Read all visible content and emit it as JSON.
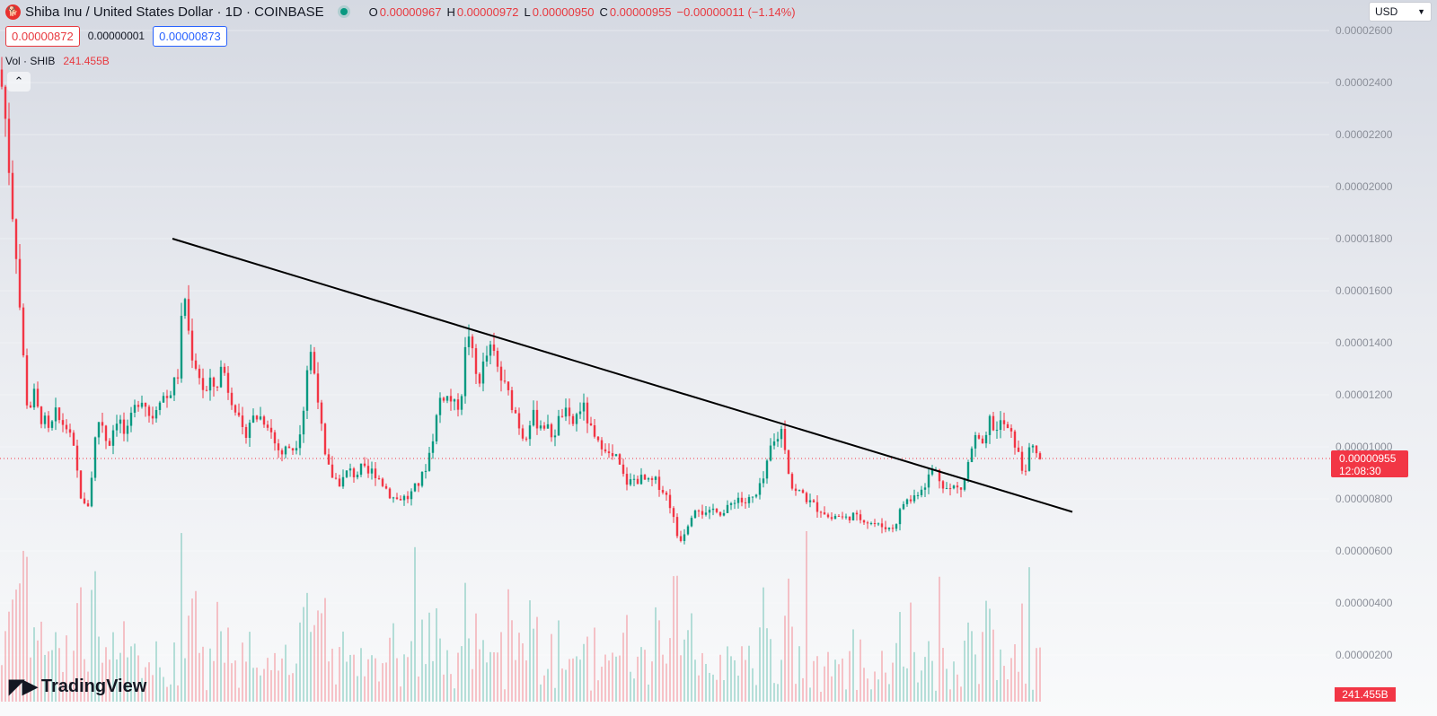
{
  "header": {
    "logo_icon": "shiba-inu-coin-icon",
    "symbol_title": "Shiba Inu / United States Dollar · 1D · COINBASE",
    "market_status_color": "#089981",
    "ohlc": {
      "open_label": "O",
      "open": "0.00000967",
      "high_label": "H",
      "high": "0.00000972",
      "low_label": "L",
      "low": "0.00000950",
      "close_label": "C",
      "close": "0.00000955",
      "change": "−0.00000011 (−1.14%)"
    },
    "sell_price": "0.00000872",
    "spread": "0.00000001",
    "buy_price": "0.00000873",
    "volume_label": "Vol · SHIB",
    "volume_value": "241.455B",
    "collapse_icon": "chevron-up-icon"
  },
  "currency_select": {
    "value": "USD"
  },
  "price_scale": {
    "labels": [
      "0.00002600",
      "0.00002400",
      "0.00002200",
      "0.00002000",
      "0.00001800",
      "0.00001600",
      "0.00001400",
      "0.00001200",
      "0.00001000",
      "0.00000800",
      "0.00000600",
      "0.00000400",
      "0.00000200"
    ]
  },
  "last_price_tag": {
    "price": "0.00000955",
    "countdown": "12:08:30"
  },
  "volume_tag": "241.455B",
  "branding": {
    "logo_text": "TradingView",
    "logo_icon": "tradingview-logo-icon"
  },
  "colors": {
    "up": "#089981",
    "down": "#f23645",
    "trendline": "#000000"
  },
  "chart_data": {
    "type": "candlestick",
    "y_range": [
      4e-06,
      2.65e-05
    ],
    "price_points": [
      [
        0,
        2.45e-05
      ],
      [
        4,
        2.32e-05
      ],
      [
        8,
        2.2e-05
      ],
      [
        12,
        1.95e-05
      ],
      [
        16,
        1.85e-05
      ],
      [
        20,
        1.65e-05
      ],
      [
        24,
        1.43e-05
      ],
      [
        28,
        1.25e-05
      ],
      [
        32,
        1.1e-05
      ],
      [
        36,
        1.22e-05
      ],
      [
        40,
        1.18e-05
      ],
      [
        44,
        1.1e-05
      ],
      [
        48,
        1.12e-05
      ],
      [
        52,
        1.07e-05
      ],
      [
        56,
        1.04e-05
      ],
      [
        60,
        1.13e-05
      ],
      [
        64,
        1.12e-05
      ],
      [
        68,
        1.08e-05
      ],
      [
        72,
        1.1e-05
      ],
      [
        76,
        1.05e-05
      ],
      [
        80,
        1.02e-05
      ],
      [
        84,
        9.5e-06
      ],
      [
        88,
        8.5e-06
      ],
      [
        92,
        7.8e-06
      ],
      [
        96,
        7.6e-06
      ],
      [
        100,
        8e-06
      ],
      [
        104,
        9.8e-06
      ],
      [
        108,
        1.08e-05
      ],
      [
        112,
        1.12e-05
      ],
      [
        116,
        1.06e-05
      ],
      [
        120,
        1e-05
      ],
      [
        124,
        1.04e-05
      ],
      [
        128,
        1.1e-05
      ],
      [
        132,
        1.12e-05
      ],
      [
        136,
        1.07e-05
      ],
      [
        140,
        1.03e-05
      ],
      [
        144,
        1.08e-05
      ],
      [
        148,
        1.13e-05
      ],
      [
        152,
        1.16e-05
      ],
      [
        156,
        1.2e-05
      ],
      [
        160,
        1.18e-05
      ],
      [
        164,
        1.15e-05
      ],
      [
        168,
        1.1e-05
      ],
      [
        172,
        1.14e-05
      ],
      [
        176,
        1.18e-05
      ],
      [
        180,
        1.21e-05
      ],
      [
        184,
        1.18e-05
      ],
      [
        188,
        1.2e-05
      ],
      [
        192,
        1.23e-05
      ],
      [
        196,
        1.26e-05
      ],
      [
        200,
        1.3e-05
      ],
      [
        204,
        1.65e-05
      ],
      [
        208,
        1.5e-05
      ],
      [
        212,
        1.38e-05
      ],
      [
        216,
        1.33e-05
      ],
      [
        220,
        1.3e-05
      ],
      [
        224,
        1.25e-05
      ],
      [
        228,
        1.2e-05
      ],
      [
        232,
        1.22e-05
      ],
      [
        236,
        1.26e-05
      ],
      [
        240,
        1.21e-05
      ],
      [
        244,
        1.28e-05
      ],
      [
        248,
        1.32e-05
      ],
      [
        252,
        1.25e-05
      ],
      [
        256,
        1.2e-05
      ],
      [
        260,
        1.18e-05
      ],
      [
        264,
        1.13e-05
      ],
      [
        268,
        1.06e-05
      ],
      [
        272,
        1.04e-05
      ],
      [
        276,
        1.08e-05
      ],
      [
        280,
        1.12e-05
      ],
      [
        284,
        1.1e-05
      ],
      [
        288,
        1.13e-05
      ],
      [
        292,
        1.1e-05
      ],
      [
        296,
        1.11e-05
      ],
      [
        300,
        1.08e-05
      ],
      [
        304,
        1.03e-05
      ],
      [
        308,
        1e-05
      ],
      [
        312,
        9.8e-06
      ],
      [
        316,
        9.7e-06
      ],
      [
        320,
        1.01e-05
      ],
      [
        324,
        9.9e-06
      ],
      [
        328,
        1e-05
      ],
      [
        332,
        1.04e-05
      ],
      [
        336,
        1.1e-05
      ],
      [
        340,
        1.2e-05
      ],
      [
        344,
        1.4e-05
      ],
      [
        348,
        1.32e-05
      ],
      [
        352,
        1.25e-05
      ],
      [
        356,
        1.15e-05
      ],
      [
        360,
        9.8e-06
      ],
      [
        364,
        9.3e-06
      ],
      [
        368,
        9e-06
      ],
      [
        372,
        8.8e-06
      ],
      [
        376,
        8.7e-06
      ],
      [
        380,
        8.6e-06
      ],
      [
        384,
        8.9e-06
      ],
      [
        388,
        9.1e-06
      ],
      [
        392,
        9e-06
      ],
      [
        396,
        8.9e-06
      ],
      [
        400,
        9.1e-06
      ],
      [
        404,
        9.2e-06
      ],
      [
        408,
        8.9e-06
      ],
      [
        412,
        9e-06
      ],
      [
        416,
        9.1e-06
      ],
      [
        420,
        8.9e-06
      ],
      [
        424,
        8.7e-06
      ],
      [
        428,
        8.5e-06
      ],
      [
        432,
        8.3e-06
      ],
      [
        436,
        8.1e-06
      ],
      [
        440,
        8e-06
      ],
      [
        444,
        8e-06
      ],
      [
        448,
        8.1e-06
      ],
      [
        452,
        8e-06
      ],
      [
        456,
        8.1e-06
      ],
      [
        460,
        8.3e-06
      ],
      [
        464,
        8.5e-06
      ],
      [
        468,
        8.7e-06
      ],
      [
        472,
        9e-06
      ],
      [
        476,
        9.5e-06
      ],
      [
        480,
        1e-05
      ],
      [
        484,
        1.08e-05
      ],
      [
        488,
        1.15e-05
      ],
      [
        492,
        1.22e-05
      ],
      [
        496,
        1.18e-05
      ],
      [
        500,
        1.2e-05
      ],
      [
        504,
        1.16e-05
      ],
      [
        508,
        1.15e-05
      ],
      [
        512,
        1.18e-05
      ],
      [
        516,
        1.25e-05
      ],
      [
        520,
        1.48e-05
      ],
      [
        524,
        1.4e-05
      ],
      [
        528,
        1.3e-05
      ],
      [
        532,
        1.25e-05
      ],
      [
        536,
        1.28e-05
      ],
      [
        540,
        1.34e-05
      ],
      [
        544,
        1.36e-05
      ],
      [
        548,
        1.38e-05
      ],
      [
        552,
        1.32e-05
      ],
      [
        556,
        1.28e-05
      ],
      [
        560,
        1.24e-05
      ],
      [
        564,
        1.22e-05
      ],
      [
        568,
        1.18e-05
      ],
      [
        572,
        1.15e-05
      ],
      [
        576,
        1.11e-05
      ],
      [
        580,
        1.06e-05
      ],
      [
        584,
        1.03e-05
      ],
      [
        588,
        1.08e-05
      ],
      [
        592,
        1.12e-05
      ],
      [
        596,
        1.11e-05
      ],
      [
        600,
        1.08e-05
      ],
      [
        604,
        1.1e-05
      ],
      [
        608,
        1.07e-05
      ],
      [
        612,
        1.06e-05
      ],
      [
        616,
        1.04e-05
      ],
      [
        620,
        1.08e-05
      ],
      [
        624,
        1.12e-05
      ],
      [
        628,
        1.14e-05
      ],
      [
        632,
        1.11e-05
      ],
      [
        636,
        1.08e-05
      ],
      [
        640,
        1.1e-05
      ],
      [
        644,
        1.14e-05
      ],
      [
        648,
        1.16e-05
      ],
      [
        652,
        1.13e-05
      ],
      [
        656,
        1.08e-05
      ],
      [
        660,
        1.04e-05
      ],
      [
        664,
        1.01e-05
      ],
      [
        668,
        1e-05
      ],
      [
        672,
        1.03e-05
      ],
      [
        676,
        9.8e-06
      ],
      [
        680,
        9.5e-06
      ],
      [
        684,
        9.7e-06
      ],
      [
        688,
        9.4e-06
      ],
      [
        692,
        9e-06
      ],
      [
        696,
        8.7e-06
      ],
      [
        700,
        8.6e-06
      ],
      [
        704,
        8.7e-06
      ],
      [
        708,
        8.8e-06
      ],
      [
        712,
        8.7e-06
      ],
      [
        716,
        8.8e-06
      ],
      [
        720,
        8.6e-06
      ],
      [
        724,
        8.6e-06
      ],
      [
        728,
        8.7e-06
      ],
      [
        732,
        8.6e-06
      ],
      [
        736,
        8.5e-06
      ],
      [
        740,
        8.2e-06
      ],
      [
        744,
        8e-06
      ],
      [
        748,
        7.6e-06
      ],
      [
        752,
        6.8e-06
      ],
      [
        756,
        6.4e-06
      ],
      [
        760,
        6.6e-06
      ],
      [
        764,
        6.9e-06
      ],
      [
        768,
        7.3e-06
      ],
      [
        772,
        7.6e-06
      ],
      [
        776,
        7.8e-06
      ],
      [
        780,
        7.6e-06
      ],
      [
        784,
        7.4e-06
      ],
      [
        788,
        7.3e-06
      ],
      [
        792,
        7.5e-06
      ],
      [
        796,
        7.7e-06
      ],
      [
        800,
        7.6e-06
      ],
      [
        804,
        7.4e-06
      ],
      [
        808,
        7.5e-06
      ],
      [
        812,
        7.7e-06
      ],
      [
        816,
        7.9e-06
      ],
      [
        820,
        8.1e-06
      ],
      [
        824,
        8e-06
      ],
      [
        828,
        7.8e-06
      ],
      [
        832,
        7.9e-06
      ],
      [
        836,
        8e-06
      ],
      [
        840,
        8e-06
      ],
      [
        844,
        8.2e-06
      ],
      [
        848,
        8.6e-06
      ],
      [
        852,
        8.9e-06
      ],
      [
        856,
        9.6e-06
      ],
      [
        860,
        1.03e-05
      ],
      [
        864,
        1e-05
      ],
      [
        868,
        1.08e-05
      ],
      [
        872,
        1.05e-05
      ],
      [
        876,
        9.6e-06
      ],
      [
        880,
        8.6e-06
      ],
      [
        884,
        8.3e-06
      ],
      [
        888,
        8.2e-06
      ],
      [
        892,
        8.3e-06
      ],
      [
        896,
        8.1e-06
      ],
      [
        900,
        7.9e-06
      ],
      [
        904,
        7.8e-06
      ],
      [
        908,
        7.7e-06
      ],
      [
        912,
        7.6e-06
      ],
      [
        916,
        7.6e-06
      ],
      [
        920,
        7.4e-06
      ],
      [
        924,
        7.2e-06
      ],
      [
        928,
        7.3e-06
      ],
      [
        932,
        7.4e-06
      ],
      [
        936,
        7.3e-06
      ],
      [
        940,
        7.2e-06
      ],
      [
        944,
        7.3e-06
      ],
      [
        948,
        7.4e-06
      ],
      [
        952,
        7.3e-06
      ],
      [
        956,
        7.2e-06
      ],
      [
        960,
        7.3e-06
      ],
      [
        964,
        7.2e-06
      ],
      [
        968,
        7.1e-06
      ],
      [
        972,
        7.1e-06
      ],
      [
        976,
        7e-06
      ],
      [
        980,
        6.9e-06
      ],
      [
        984,
        7e-06
      ],
      [
        988,
        6.9e-06
      ],
      [
        992,
        6.8e-06
      ],
      [
        996,
        7e-06
      ],
      [
        1000,
        7.3e-06
      ],
      [
        1004,
        7.7e-06
      ],
      [
        1008,
        8e-06
      ],
      [
        1012,
        7.9e-06
      ],
      [
        1016,
        8e-06
      ],
      [
        1020,
        8.2e-06
      ],
      [
        1024,
        8.4e-06
      ],
      [
        1028,
        8.5e-06
      ],
      [
        1032,
        8.7e-06
      ],
      [
        1036,
        9e-06
      ],
      [
        1040,
        9.2e-06
      ],
      [
        1044,
        8.9e-06
      ],
      [
        1048,
        8.7e-06
      ],
      [
        1052,
        8.5e-06
      ],
      [
        1056,
        8.3e-06
      ],
      [
        1060,
        8.4e-06
      ],
      [
        1064,
        8.5e-06
      ],
      [
        1068,
        8.3e-06
      ],
      [
        1072,
        8.5e-06
      ],
      [
        1076,
        9e-06
      ],
      [
        1080,
        9.7e-06
      ],
      [
        1084,
        1.02e-05
      ],
      [
        1088,
        1.04e-05
      ],
      [
        1092,
        1e-05
      ],
      [
        1096,
        9.8e-06
      ],
      [
        1100,
        1.08e-05
      ],
      [
        1104,
        1.12e-05
      ],
      [
        1108,
        1.04e-05
      ],
      [
        1112,
        1.08e-05
      ],
      [
        1116,
        1.1e-05
      ],
      [
        1120,
        1.07e-05
      ],
      [
        1124,
        1.05e-05
      ],
      [
        1128,
        1.03e-05
      ],
      [
        1132,
        1e-05
      ],
      [
        1136,
        9.3e-06
      ],
      [
        1140,
        9e-06
      ],
      [
        1144,
        9.5e-06
      ],
      [
        1148,
        1e-05
      ],
      [
        1152,
        9.8e-06
      ],
      [
        1156,
        9.6e-06
      ],
      [
        1160,
        9.5e-06
      ]
    ],
    "trendline": [
      [
        192,
        1.8e-05
      ],
      [
        1194,
        7.5e-06
      ]
    ],
    "last_price": 9.55e-06
  }
}
